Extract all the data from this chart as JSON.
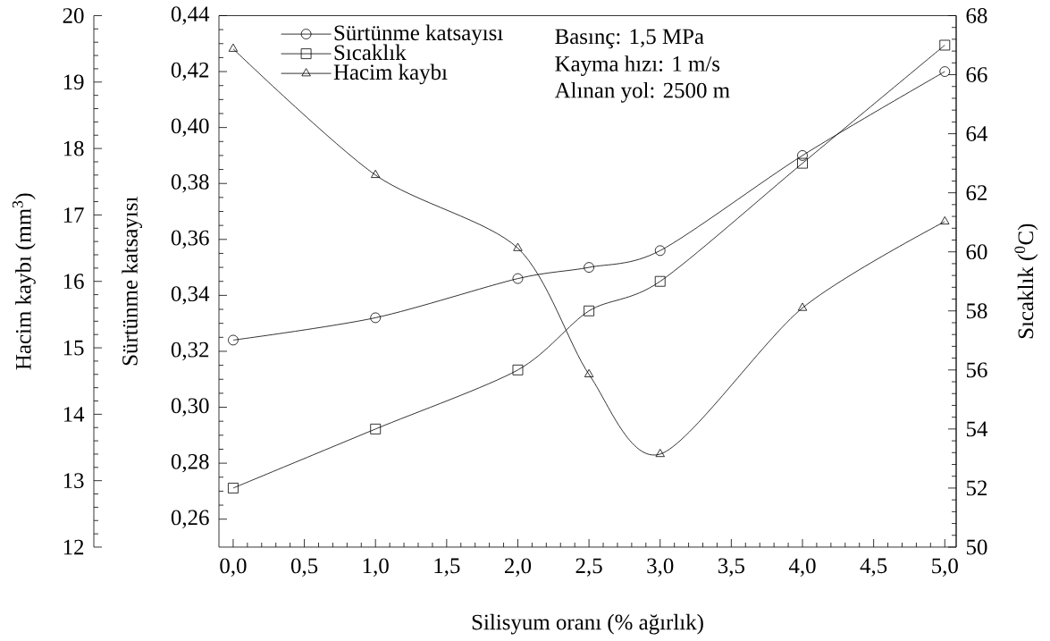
{
  "chart_data": {
    "type": "line",
    "xlabel": "Silisyum oranı (% ağırlık)",
    "ylabel": "Sürtünme katsayısı",
    "y2label": "Sıcaklık ($^{0}$C)",
    "y3label": "Hacim kaybı (mm$^{3}$)",
    "x": [
      0,
      1,
      2,
      2.5,
      3,
      4,
      5
    ],
    "xlim": [
      -0.1,
      5.08
    ],
    "xticks": [
      {
        "value": 0,
        "label": "0,0"
      },
      {
        "value": 0.5,
        "label": "0,5"
      },
      {
        "value": 1,
        "label": "1,0"
      },
      {
        "value": 1.5,
        "label": "1,5"
      },
      {
        "value": 2,
        "label": "2,0"
      },
      {
        "value": 2.5,
        "label": "2,5"
      },
      {
        "value": 3,
        "label": "3,0"
      },
      {
        "value": 3.5,
        "label": "3,5"
      },
      {
        "value": 4,
        "label": "4,0"
      },
      {
        "value": 4.5,
        "label": "4,5"
      },
      {
        "value": 5,
        "label": "5,0"
      }
    ],
    "ylim": [
      0.25,
      0.44
    ],
    "yticks": [
      {
        "value": 0.26,
        "label": "0,26"
      },
      {
        "value": 0.28,
        "label": "0,28"
      },
      {
        "value": 0.3,
        "label": "0,30"
      },
      {
        "value": 0.32,
        "label": "0,32"
      },
      {
        "value": 0.34,
        "label": "0,34"
      },
      {
        "value": 0.36,
        "label": "0,36"
      },
      {
        "value": 0.38,
        "label": "0,38"
      },
      {
        "value": 0.4,
        "label": "0,40"
      },
      {
        "value": 0.42,
        "label": "0,42"
      },
      {
        "value": 0.44,
        "label": "0,44"
      }
    ],
    "y2lim": [
      50,
      68
    ],
    "y2ticks": [
      50,
      52,
      54,
      56,
      58,
      60,
      62,
      64,
      66,
      68
    ],
    "y3lim": [
      12,
      20
    ],
    "y3ticks": [
      12,
      13,
      14,
      15,
      16,
      17,
      18,
      19,
      20
    ],
    "series": [
      {
        "name": "Sürtünme katsayısı",
        "color": "#000000",
        "marker": "circle",
        "values": [
          0.324,
          0.332,
          0.346,
          0.35,
          0.356,
          0.39,
          0.42
        ]
      },
      {
        "name": "Sıcaklık",
        "color": "#000000",
        "marker": "square",
        "axis": "y2",
        "values": [
          52,
          54,
          56,
          58,
          59,
          63,
          67
        ]
      },
      {
        "name": "Hacim kaybı",
        "color": "#000000",
        "marker": "triangle",
        "axis": "y3",
        "values": [
          19.5,
          17.6,
          16.5,
          14.6,
          13.4,
          15.6,
          16.9
        ]
      }
    ],
    "line_style": "solid",
    "legend": "top left",
    "annotations": [
      "Basınç: 1,5 MPa",
      "Kayma hızı: 1 m/s",
      "Alınan yol: 2500 m"
    ]
  }
}
